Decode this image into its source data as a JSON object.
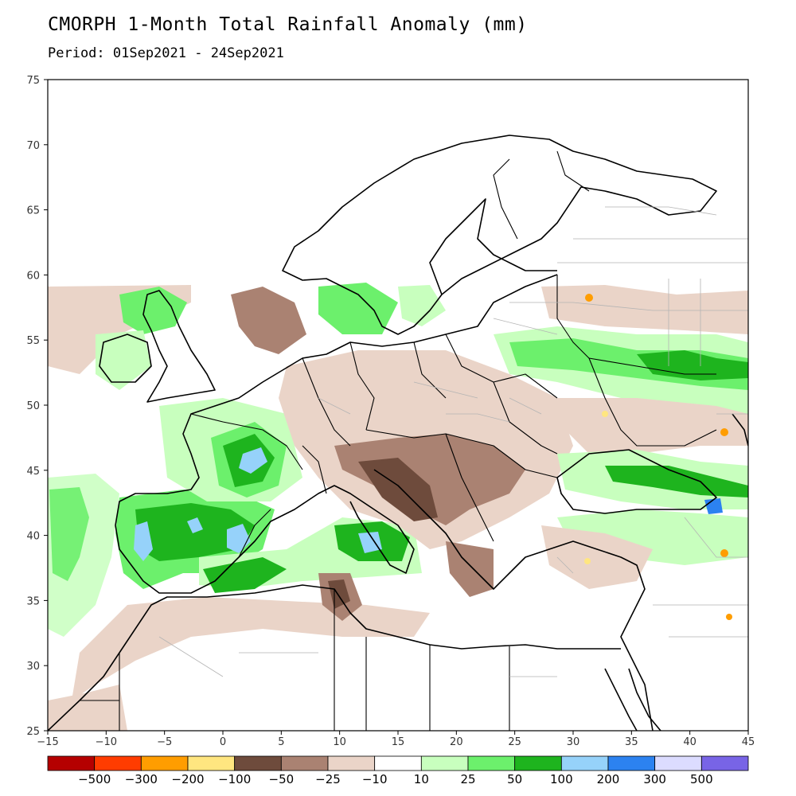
{
  "title": "CMORPH 1-Month Total Rainfall Anomaly (mm)",
  "subtitle": "Period: 01Sep2021 - 24Sep2021",
  "map": {
    "lon_range": [
      -15,
      45
    ],
    "lat_range": [
      25,
      75
    ],
    "lon_ticks": [
      "-15",
      "-10",
      "-5",
      "0",
      "5",
      "10",
      "15",
      "20",
      "25",
      "30",
      "35",
      "40",
      "45"
    ],
    "lat_ticks": [
      "25",
      "30",
      "35",
      "40",
      "45",
      "50",
      "55",
      "60",
      "65",
      "70",
      "75"
    ],
    "data_coverage_north_lat": 59,
    "land_fill": "#ffffff",
    "coast_color": "#000000",
    "border_color": "#000000",
    "admin_border_color": "#b4b4b4"
  },
  "colorbar": {
    "colors": [
      "#b50000",
      "#ff3c00",
      "#ff9d00",
      "#ffe680",
      "#6e4b3c",
      "#aa8272",
      "#ead4c8",
      "#ffffff",
      "#c8ffbe",
      "#6cf06c",
      "#1eb41e",
      "#96d2fa",
      "#2c82f0",
      "#dcdcff",
      "#7864e6"
    ],
    "labels": [
      "-500",
      "-300",
      "-200",
      "-100",
      "-50",
      "-25",
      "-10",
      "10",
      "25",
      "50",
      "100",
      "200",
      "300",
      "500"
    ]
  }
}
